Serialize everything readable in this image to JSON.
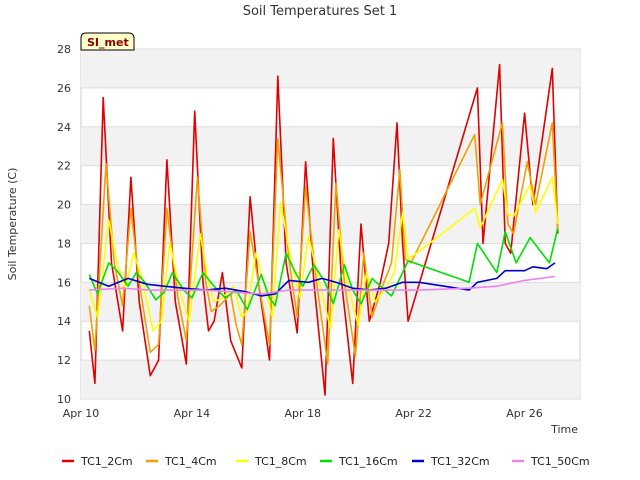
{
  "chart_data": {
    "type": "line",
    "title": "Soil Temperatures Set 1",
    "xlabel": "Time",
    "ylabel": "Soil Temperature (C)",
    "badge": "SI_met",
    "xlim_days": [
      10,
      28
    ],
    "ylim": [
      10,
      28
    ],
    "yticks": [
      "10",
      "12",
      "14",
      "16",
      "18",
      "20",
      "22",
      "24",
      "26",
      "28"
    ],
    "xticks": [
      {
        "day": 10,
        "label": "Apr 10"
      },
      {
        "day": 14,
        "label": "Apr 14"
      },
      {
        "day": 18,
        "label": "Apr 18"
      },
      {
        "day": 22,
        "label": "Apr 22"
      },
      {
        "day": 26,
        "label": "Apr 26"
      }
    ],
    "grid": "horizontal bands",
    "legend_position": "bottom",
    "series": [
      {
        "name": "TC1_2Cm",
        "color": "#e00000",
        "points": [
          [
            10.3,
            13.5
          ],
          [
            10.5,
            10.8
          ],
          [
            10.8,
            25.5
          ],
          [
            11.1,
            17
          ],
          [
            11.5,
            13.5
          ],
          [
            11.8,
            21.4
          ],
          [
            12.1,
            15
          ],
          [
            12.5,
            11.2
          ],
          [
            12.8,
            12
          ],
          [
            13.1,
            22.3
          ],
          [
            13.4,
            15
          ],
          [
            13.8,
            11.8
          ],
          [
            14.1,
            24.8
          ],
          [
            14.4,
            16
          ],
          [
            14.6,
            13.5
          ],
          [
            14.8,
            14
          ],
          [
            15.1,
            16.5
          ],
          [
            15.4,
            13
          ],
          [
            15.8,
            11.6
          ],
          [
            16.1,
            20.4
          ],
          [
            16.4,
            16
          ],
          [
            16.8,
            12
          ],
          [
            17.1,
            26.6
          ],
          [
            17.4,
            17
          ],
          [
            17.8,
            13.4
          ],
          [
            18.1,
            22.2
          ],
          [
            18.4,
            16
          ],
          [
            18.8,
            10.2
          ],
          [
            19.1,
            23.4
          ],
          [
            19.4,
            16
          ],
          [
            19.8,
            10.8
          ],
          [
            20.1,
            19
          ],
          [
            20.4,
            14
          ],
          [
            20.8,
            16
          ],
          [
            21.1,
            18
          ],
          [
            21.4,
            24.2
          ],
          [
            21.6,
            18
          ],
          [
            21.8,
            14
          ],
          [
            24.3,
            26
          ],
          [
            24.5,
            18
          ],
          [
            25.1,
            27.2
          ],
          [
            25.3,
            18
          ],
          [
            25.5,
            17.5
          ],
          [
            26.0,
            24.7
          ],
          [
            26.3,
            20
          ],
          [
            27.0,
            27
          ],
          [
            27.2,
            18.5
          ]
        ]
      },
      {
        "name": "TC1_4Cm",
        "color": "#f0a000",
        "points": [
          [
            10.3,
            14.8
          ],
          [
            10.5,
            12.5
          ],
          [
            10.9,
            22.1
          ],
          [
            11.2,
            17
          ],
          [
            11.5,
            14.8
          ],
          [
            11.8,
            19.8
          ],
          [
            12.1,
            16
          ],
          [
            12.5,
            12.4
          ],
          [
            12.8,
            12.8
          ],
          [
            13.1,
            19.8
          ],
          [
            13.5,
            15.2
          ],
          [
            13.8,
            13
          ],
          [
            14.2,
            21.4
          ],
          [
            14.5,
            16
          ],
          [
            14.7,
            14.5
          ],
          [
            15.0,
            14.8
          ],
          [
            15.4,
            15.4
          ],
          [
            15.6,
            13.8
          ],
          [
            15.8,
            12.8
          ],
          [
            16.1,
            18.6
          ],
          [
            16.4,
            16
          ],
          [
            16.8,
            12.8
          ],
          [
            17.1,
            23.4
          ],
          [
            17.5,
            17.2
          ],
          [
            17.8,
            14.2
          ],
          [
            18.1,
            20.9
          ],
          [
            18.5,
            16
          ],
          [
            18.9,
            11.8
          ],
          [
            19.2,
            21.1
          ],
          [
            19.5,
            16
          ],
          [
            19.9,
            12.2
          ],
          [
            20.2,
            17.5
          ],
          [
            20.5,
            14.2
          ],
          [
            20.9,
            15.9
          ],
          [
            21.2,
            17
          ],
          [
            21.5,
            21.8
          ],
          [
            21.7,
            17.2
          ],
          [
            21.9,
            17
          ],
          [
            24.2,
            23.6
          ],
          [
            24.4,
            20
          ],
          [
            25.2,
            24.2
          ],
          [
            25.4,
            19
          ],
          [
            25.6,
            18.5
          ],
          [
            26.1,
            22.2
          ],
          [
            26.4,
            20
          ],
          [
            27.0,
            24.2
          ],
          [
            27.2,
            18.7
          ]
        ]
      },
      {
        "name": "TC1_8Cm",
        "color": "#ffff00",
        "points": [
          [
            10.3,
            15.6
          ],
          [
            10.6,
            14.2
          ],
          [
            11.0,
            19.2
          ],
          [
            11.3,
            17
          ],
          [
            11.6,
            15.7
          ],
          [
            11.9,
            17.5
          ],
          [
            12.2,
            16.2
          ],
          [
            12.6,
            13.5
          ],
          [
            12.9,
            14
          ],
          [
            13.2,
            18
          ],
          [
            13.6,
            15.4
          ],
          [
            13.9,
            14
          ],
          [
            14.3,
            18.5
          ],
          [
            14.6,
            16
          ],
          [
            14.8,
            15
          ],
          [
            15.1,
            15.2
          ],
          [
            15.5,
            15.8
          ],
          [
            15.8,
            14.2
          ],
          [
            16.0,
            14.5
          ],
          [
            16.3,
            17.5
          ],
          [
            16.6,
            16
          ],
          [
            16.9,
            14.2
          ],
          [
            17.2,
            20.1
          ],
          [
            17.6,
            17
          ],
          [
            17.9,
            15.2
          ],
          [
            18.2,
            18.4
          ],
          [
            18.6,
            16
          ],
          [
            19.0,
            13.6
          ],
          [
            19.3,
            18.7
          ],
          [
            19.6,
            16
          ],
          [
            20.0,
            13.8
          ],
          [
            20.3,
            16.5
          ],
          [
            20.6,
            15
          ],
          [
            21.0,
            15.7
          ],
          [
            21.3,
            16.5
          ],
          [
            21.6,
            19.6
          ],
          [
            21.8,
            17.2
          ],
          [
            22.2,
            17.6
          ],
          [
            24.2,
            19.8
          ],
          [
            24.4,
            18.8
          ],
          [
            25.2,
            21.3
          ],
          [
            25.4,
            19.5
          ],
          [
            25.6,
            19.4
          ],
          [
            26.2,
            21
          ],
          [
            26.4,
            19.6
          ],
          [
            27.0,
            21.4
          ],
          [
            27.2,
            19
          ]
        ]
      },
      {
        "name": "TC1_16Cm",
        "color": "#00e000",
        "points": [
          [
            10.3,
            16.4
          ],
          [
            10.6,
            15.4
          ],
          [
            11.0,
            17
          ],
          [
            11.3,
            16.6
          ],
          [
            11.7,
            15.8
          ],
          [
            12.0,
            16.5
          ],
          [
            12.3,
            16
          ],
          [
            12.7,
            15.1
          ],
          [
            13.0,
            15.5
          ],
          [
            13.3,
            16.5
          ],
          [
            13.7,
            15.6
          ],
          [
            14.0,
            15.2
          ],
          [
            14.4,
            16.5
          ],
          [
            14.8,
            15.8
          ],
          [
            15.2,
            15.2
          ],
          [
            15.6,
            15.6
          ],
          [
            16.0,
            14.6
          ],
          [
            16.5,
            16.4
          ],
          [
            16.8,
            15.2
          ],
          [
            17.0,
            14.8
          ],
          [
            17.4,
            17.5
          ],
          [
            17.7,
            16.6
          ],
          [
            18.0,
            15.8
          ],
          [
            18.4,
            16.9
          ],
          [
            18.8,
            16
          ],
          [
            19.1,
            14.9
          ],
          [
            19.5,
            16.9
          ],
          [
            19.8,
            15.6
          ],
          [
            20.1,
            14.9
          ],
          [
            20.5,
            16.2
          ],
          [
            20.8,
            15.8
          ],
          [
            21.2,
            15.3
          ],
          [
            21.6,
            16.5
          ],
          [
            21.8,
            17.1
          ],
          [
            24.0,
            16
          ],
          [
            24.3,
            18
          ],
          [
            25.0,
            16.5
          ],
          [
            25.3,
            18.6
          ],
          [
            25.7,
            17
          ],
          [
            26.2,
            18.3
          ],
          [
            26.9,
            17
          ],
          [
            27.2,
            18.8
          ]
        ]
      },
      {
        "name": "TC1_32Cm",
        "color": "#0000cc",
        "points": [
          [
            10.3,
            16.2
          ],
          [
            11.0,
            15.8
          ],
          [
            11.7,
            16.2
          ],
          [
            12.4,
            15.9
          ],
          [
            13.0,
            15.8
          ],
          [
            13.7,
            15.7
          ],
          [
            14.5,
            15.6
          ],
          [
            15.2,
            15.7
          ],
          [
            16.0,
            15.5
          ],
          [
            16.5,
            15.3
          ],
          [
            17.0,
            15.4
          ],
          [
            17.5,
            16.1
          ],
          [
            18.2,
            16
          ],
          [
            18.7,
            16.2
          ],
          [
            19.2,
            16
          ],
          [
            19.8,
            15.7
          ],
          [
            20.4,
            15.6
          ],
          [
            21.0,
            15.7
          ],
          [
            21.6,
            16
          ],
          [
            22.2,
            16
          ],
          [
            24.0,
            15.6
          ],
          [
            24.3,
            16
          ],
          [
            25.0,
            16.2
          ],
          [
            25.3,
            16.6
          ],
          [
            26.0,
            16.6
          ],
          [
            26.3,
            16.8
          ],
          [
            26.8,
            16.7
          ],
          [
            27.1,
            17
          ]
        ]
      },
      {
        "name": "TC1_50Cm",
        "color": "#ee82ee",
        "points": [
          [
            10.3,
            15.6
          ],
          [
            11.5,
            15.7
          ],
          [
            12.5,
            15.6
          ],
          [
            13.5,
            15.6
          ],
          [
            14.5,
            15.6
          ],
          [
            15.5,
            15.5
          ],
          [
            16.5,
            15.4
          ],
          [
            17.5,
            15.6
          ],
          [
            18.5,
            15.6
          ],
          [
            19.5,
            15.6
          ],
          [
            20.5,
            15.6
          ],
          [
            21.5,
            15.6
          ],
          [
            22.2,
            15.6
          ],
          [
            24.0,
            15.7
          ],
          [
            25.0,
            15.8
          ],
          [
            26.0,
            16.1
          ],
          [
            27.1,
            16.3
          ]
        ]
      }
    ]
  }
}
